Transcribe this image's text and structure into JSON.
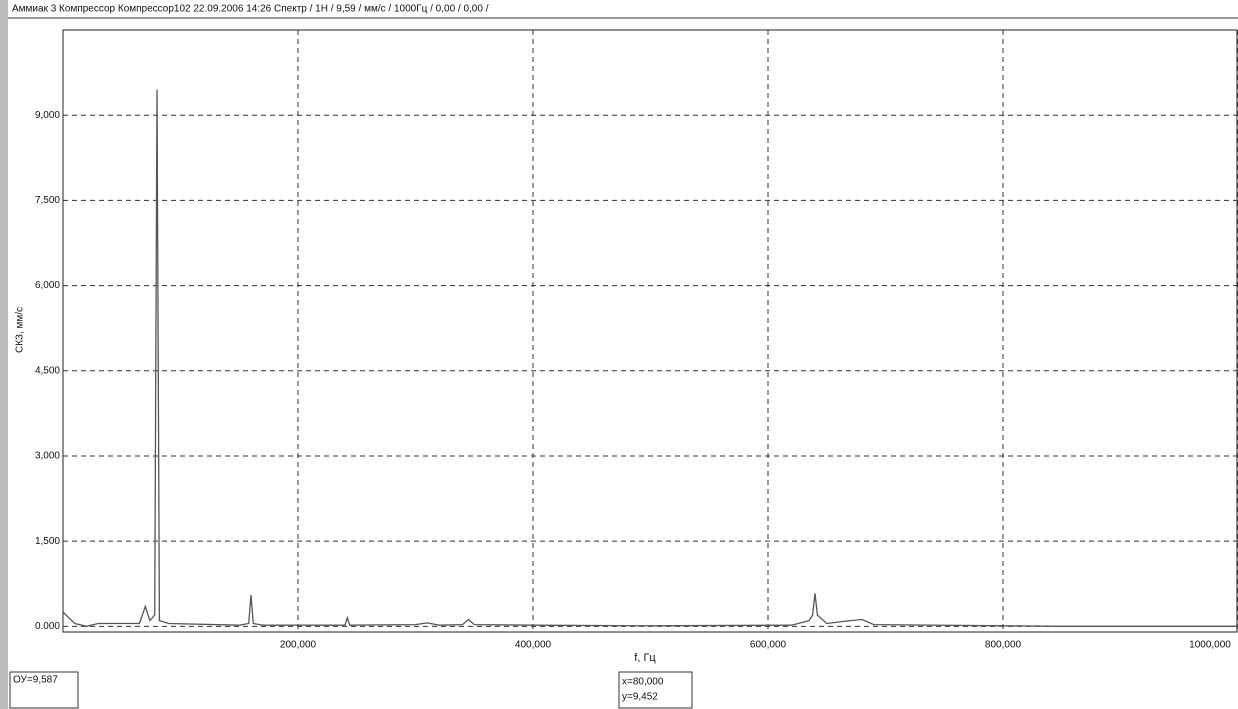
{
  "chart_data": {
    "type": "line",
    "title": "Аммиак 3 Компрессор Компрессор102 22.09.2006 14:26 Спектр / 1Н / 9,59 / мм/с / 1000Гц / 0,00 / 0,00 /",
    "x_label": "f, Гц",
    "y_label": "СКЗ, мм/с",
    "x": [
      0,
      5,
      10,
      20,
      30,
      65,
      70,
      74,
      78,
      80,
      82,
      90,
      150,
      158,
      160,
      162,
      170,
      240,
      242,
      244,
      300,
      310,
      320,
      340,
      345,
      350,
      400,
      500,
      620,
      635,
      638,
      640,
      642,
      650,
      670,
      680,
      690,
      800,
      850,
      1000
    ],
    "values": [
      0.25,
      0.15,
      0.05,
      0.0,
      0.05,
      0.05,
      0.35,
      0.1,
      0.2,
      9.45,
      0.1,
      0.05,
      0.02,
      0.05,
      0.55,
      0.05,
      0.02,
      0.02,
      0.15,
      0.02,
      0.03,
      0.06,
      0.02,
      0.03,
      0.12,
      0.03,
      0.02,
      0.01,
      0.02,
      0.1,
      0.2,
      0.58,
      0.2,
      0.05,
      0.1,
      0.12,
      0.03,
      0.01,
      0.0,
      0.0
    ],
    "color": "#555555",
    "xlim": [
      0,
      1000
    ],
    "ylim": [
      -0.1,
      10.5
    ],
    "xticks": [
      {
        "value": 200,
        "label": "200,000"
      },
      {
        "value": 400,
        "label": "400,000"
      },
      {
        "value": 600,
        "label": "600,000"
      },
      {
        "value": 800,
        "label": "800,000"
      },
      {
        "value": 1000,
        "label": "1000,000"
      }
    ],
    "yticks": [
      {
        "value": 0,
        "label": "0.000"
      },
      {
        "value": 1.5,
        "label": "1,500"
      },
      {
        "value": 3,
        "label": "3,000"
      },
      {
        "value": 4.5,
        "label": "4,500"
      },
      {
        "value": 6,
        "label": "6,000"
      },
      {
        "value": 7.5,
        "label": "7,500"
      },
      {
        "value": 9,
        "label": "9,000"
      }
    ],
    "grid": true
  },
  "status": {
    "ou": "ОУ=9,587",
    "cursor_x": "x=80,000",
    "cursor_y": "y=9,452"
  }
}
